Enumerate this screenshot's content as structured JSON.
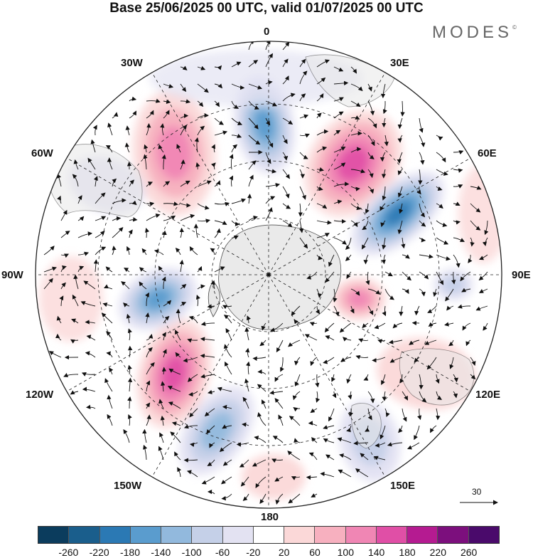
{
  "title": "Base 25/06/2025 00 UTC, valid 01/07/2025 00 UTC",
  "logo": {
    "text": "MODES",
    "mark": "©"
  },
  "meridian_labels": {
    "m0": "0",
    "m30e": "30E",
    "m60e": "60E",
    "m90e": "90E",
    "m120e": "120E",
    "m150e": "150E",
    "m180": "180",
    "m150w": "150W",
    "m120w": "120W",
    "m90w": "90W",
    "m60w": "60W",
    "m30w": "30W"
  },
  "reference_vector": {
    "label": "30"
  },
  "colorbar": {
    "colors": [
      "#0b3c5d",
      "#1a5e8c",
      "#2b79b4",
      "#5a9cce",
      "#92b9dd",
      "#c5d0e8",
      "#e3e2f2",
      "#ffffff",
      "#fbd8d8",
      "#f7b0bf",
      "#f086b4",
      "#e04fa6",
      "#b51b91",
      "#7c0f7d",
      "#4a0a6b"
    ],
    "tick_labels": [
      "-260",
      "-220",
      "-180",
      "-140",
      "-100",
      "-60",
      "-20",
      "20",
      "60",
      "100",
      "140",
      "180",
      "220",
      "260"
    ]
  },
  "map_colors": {
    "land": "#e8e8e8",
    "coast": "#444444",
    "grid": "#222222",
    "vectors": "#111111"
  },
  "anomaly_centers": [
    {
      "name": "neg-0",
      "value": -190
    },
    {
      "name": "pos-30e",
      "value": 170
    },
    {
      "name": "neg-60e",
      "value": -230
    },
    {
      "name": "pos-90e",
      "value": 150
    },
    {
      "name": "neg-90e-outer",
      "value": -110
    },
    {
      "name": "pos-120e",
      "value": 60
    },
    {
      "name": "neg-150e",
      "value": -90
    },
    {
      "name": "pos-180",
      "value": 60
    },
    {
      "name": "neg-150w",
      "value": -130
    },
    {
      "name": "pos-120w",
      "value": 190
    },
    {
      "name": "neg-90w",
      "value": -170
    },
    {
      "name": "pos-30w",
      "value": 130
    },
    {
      "name": "neg-60w",
      "value": -60
    }
  ]
}
